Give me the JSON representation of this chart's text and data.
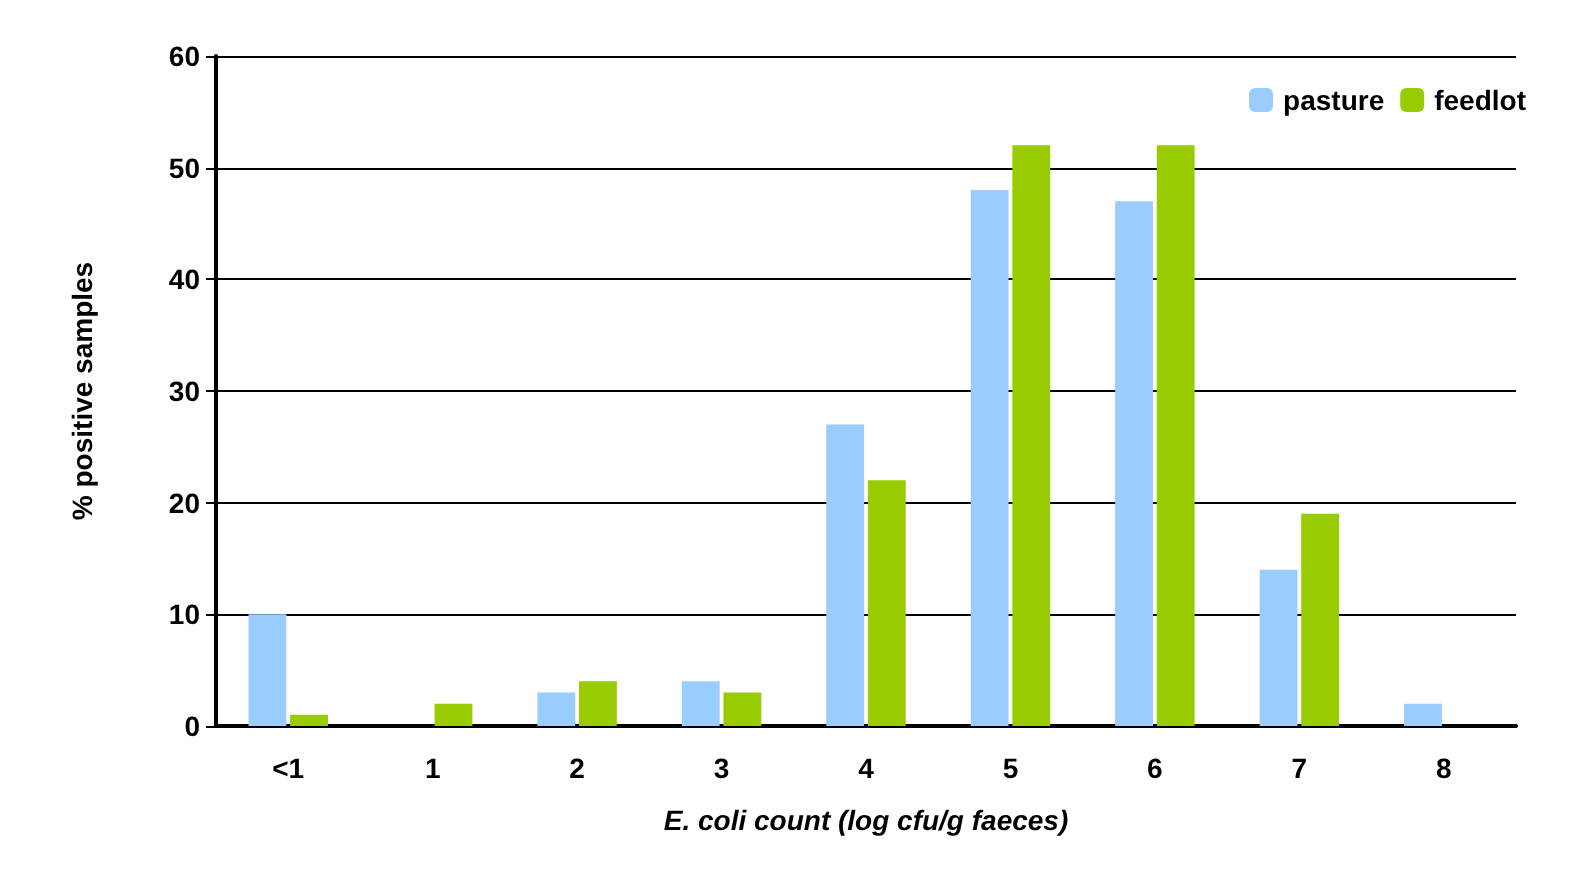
{
  "chart_data": {
    "type": "bar",
    "xlabel": "E. coli count (log cfu/g faeces)",
    "ylabel": "% positive samples",
    "categories": [
      "<1",
      "1",
      "2",
      "3",
      "4",
      "5",
      "6",
      "7",
      "8"
    ],
    "series": [
      {
        "name": "pasture",
        "color": "#99ccff",
        "values": [
          10,
          0,
          3,
          4,
          27,
          48,
          47,
          14,
          2
        ]
      },
      {
        "name": "feedlot",
        "color": "#99cc00",
        "values": [
          1,
          2,
          4,
          3,
          22,
          52,
          52,
          19,
          0
        ]
      }
    ],
    "ylim": [
      0,
      60
    ],
    "yticks": [
      0,
      10,
      20,
      30,
      40,
      50,
      60
    ],
    "grid": "y",
    "legend": "top right"
  }
}
